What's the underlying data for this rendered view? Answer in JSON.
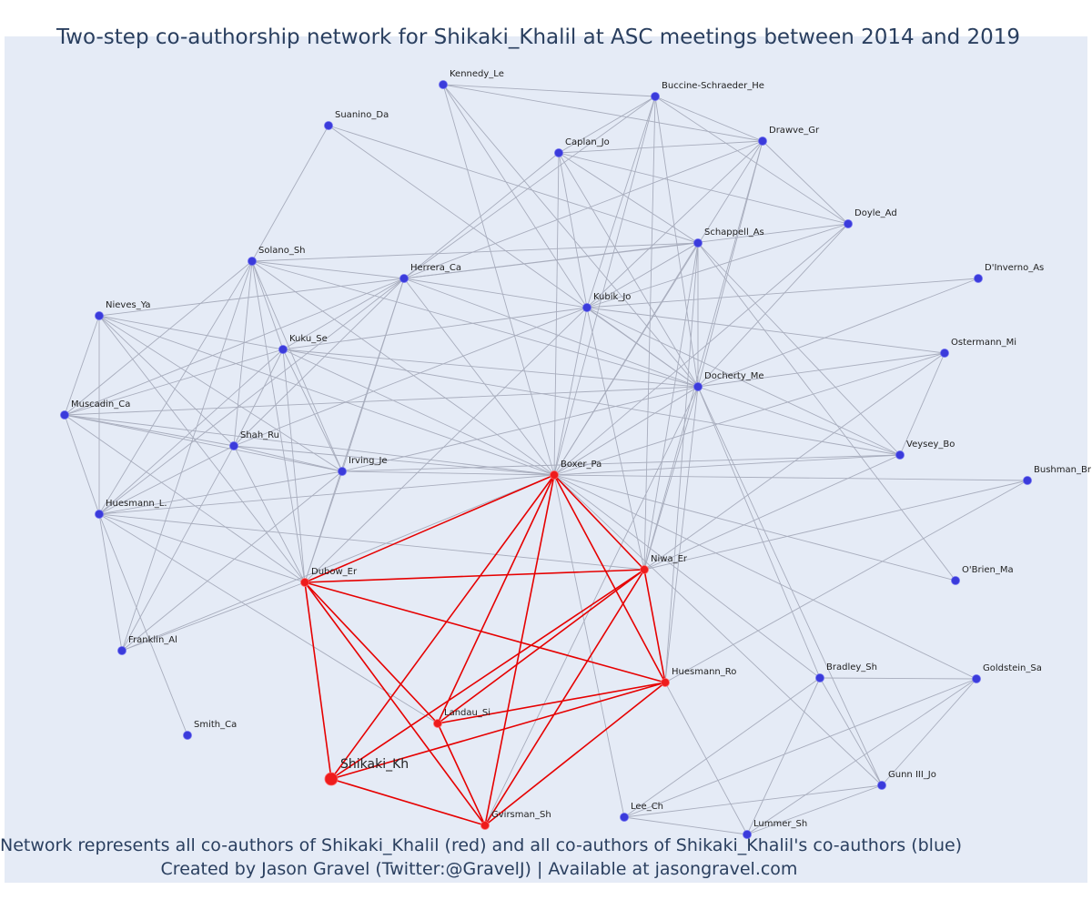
{
  "title": "Two-step co-authorship network for Shikaki_Khalil at ASC meetings between 2014 and 2019",
  "captions": {
    "line1": "Network represents all co-authors of Shikaki_Khalil (red) and all co-authors of Shikaki_Khalil's co-authors (blue)",
    "line2": "Created by Jason Gravel (Twitter:@GravelJ) | Available at jasongravel.com"
  },
  "colors": {
    "background": "#e5ebf6",
    "coauthor_node": "#3b3bdb",
    "secondary_node": "#3b3bdb",
    "direct_node": "#ee1c1c",
    "direct_edge": "#e60000",
    "secondary_edge": "#a8adbd",
    "text": "#2a3f5f"
  },
  "nodes": [
    {
      "id": "Kennedy_Le",
      "label": "Kennedy_Le",
      "group": "secondary"
    },
    {
      "id": "Buccine-Schraeder_He",
      "label": "Buccine-Schraeder_He",
      "group": "secondary"
    },
    {
      "id": "Suanino_Da",
      "label": "Suanino_Da",
      "group": "secondary"
    },
    {
      "id": "Caplan_Jo",
      "label": "Caplan_Jo",
      "group": "secondary"
    },
    {
      "id": "Drawve_Gr",
      "label": "Drawve_Gr",
      "group": "secondary"
    },
    {
      "id": "Doyle_Ad",
      "label": "Doyle_Ad",
      "group": "secondary"
    },
    {
      "id": "Schappell_As",
      "label": "Schappell_As",
      "group": "secondary"
    },
    {
      "id": "Solano_Sh",
      "label": "Solano_Sh",
      "group": "secondary"
    },
    {
      "id": "Herrera_Ca",
      "label": "Herrera_Ca",
      "group": "secondary"
    },
    {
      "id": "D'Inverno_As",
      "label": "D'Inverno_As",
      "group": "secondary"
    },
    {
      "id": "Kubik_Jo",
      "label": "Kubik_Jo",
      "group": "secondary"
    },
    {
      "id": "Nieves_Ya",
      "label": "Nieves_Ya",
      "group": "secondary"
    },
    {
      "id": "Kuku_Se",
      "label": "Kuku_Se",
      "group": "secondary"
    },
    {
      "id": "Ostermann_Mi",
      "label": "Ostermann_Mi",
      "group": "secondary"
    },
    {
      "id": "Docherty_Me",
      "label": "Docherty_Me",
      "group": "secondary"
    },
    {
      "id": "Muscadin_Ca",
      "label": "Muscadin_Ca",
      "group": "secondary"
    },
    {
      "id": "Shah_Ru",
      "label": "Shah_Ru",
      "group": "secondary"
    },
    {
      "id": "Irving_Je",
      "label": "Irving_Je",
      "group": "secondary"
    },
    {
      "id": "Veysey_Bo",
      "label": "Veysey_Bo",
      "group": "secondary"
    },
    {
      "id": "Bushman_Br",
      "label": "Bushman_Br",
      "group": "secondary"
    },
    {
      "id": "Huesmann_L.",
      "label": "Huesmann_L.",
      "group": "secondary"
    },
    {
      "id": "O'Brien_Ma",
      "label": "O'Brien_Ma",
      "group": "secondary"
    },
    {
      "id": "Franklin_Al",
      "label": "Franklin_Al",
      "group": "secondary"
    },
    {
      "id": "Bradley_Sh",
      "label": "Bradley_Sh",
      "group": "secondary"
    },
    {
      "id": "Goldstein_Sa",
      "label": "Goldstein_Sa",
      "group": "secondary"
    },
    {
      "id": "Smith_Ca",
      "label": "Smith_Ca",
      "group": "secondary"
    },
    {
      "id": "Gunn III_Jo",
      "label": "Gunn III_Jo",
      "group": "secondary"
    },
    {
      "id": "Lee_Ch",
      "label": "Lee_Ch",
      "group": "secondary"
    },
    {
      "id": "Lummer_Sh",
      "label": "Lummer_Sh",
      "group": "secondary"
    },
    {
      "id": "Boxer_Pa",
      "label": "Boxer_Pa",
      "group": "direct"
    },
    {
      "id": "Niwa_Er",
      "label": "Niwa_Er",
      "group": "direct"
    },
    {
      "id": "Dubow_Er",
      "label": "Dubow_Er",
      "group": "direct"
    },
    {
      "id": "Huesmann_Ro",
      "label": "Huesmann_Ro",
      "group": "direct"
    },
    {
      "id": "Landau_Si",
      "label": "Landau_Si",
      "group": "direct"
    },
    {
      "id": "Gvirsman_Sh",
      "label": "Gvirsman_Sh",
      "group": "direct"
    },
    {
      "id": "Shikaki_Kh",
      "label": "Shikaki_Kh",
      "group": "main"
    }
  ],
  "direct_edges": [
    [
      "Shikaki_Kh",
      "Dubow_Er"
    ],
    [
      "Shikaki_Kh",
      "Boxer_Pa"
    ],
    [
      "Shikaki_Kh",
      "Niwa_Er"
    ],
    [
      "Shikaki_Kh",
      "Huesmann_Ro"
    ],
    [
      "Shikaki_Kh",
      "Gvirsman_Sh"
    ],
    [
      "Dubow_Er",
      "Boxer_Pa"
    ],
    [
      "Dubow_Er",
      "Niwa_Er"
    ],
    [
      "Dubow_Er",
      "Huesmann_Ro"
    ],
    [
      "Dubow_Er",
      "Landau_Si"
    ],
    [
      "Dubow_Er",
      "Gvirsman_Sh"
    ],
    [
      "Boxer_Pa",
      "Niwa_Er"
    ],
    [
      "Boxer_Pa",
      "Huesmann_Ro"
    ],
    [
      "Boxer_Pa",
      "Landau_Si"
    ],
    [
      "Boxer_Pa",
      "Gvirsman_Sh"
    ],
    [
      "Niwa_Er",
      "Huesmann_Ro"
    ],
    [
      "Niwa_Er",
      "Landau_Si"
    ],
    [
      "Niwa_Er",
      "Gvirsman_Sh"
    ],
    [
      "Huesmann_Ro",
      "Landau_Si"
    ],
    [
      "Huesmann_Ro",
      "Gvirsman_Sh"
    ],
    [
      "Landau_Si",
      "Gvirsman_Sh"
    ]
  ],
  "secondary_edges": [
    [
      "Boxer_Pa",
      "Kennedy_Le"
    ],
    [
      "Boxer_Pa",
      "Buccine-Schraeder_He"
    ],
    [
      "Boxer_Pa",
      "Caplan_Jo"
    ],
    [
      "Boxer_Pa",
      "Drawve_Gr"
    ],
    [
      "Boxer_Pa",
      "Doyle_Ad"
    ],
    [
      "Boxer_Pa",
      "Schappell_As"
    ],
    [
      "Boxer_Pa",
      "Herrera_Ca"
    ],
    [
      "Boxer_Pa",
      "Kubik_Jo"
    ],
    [
      "Boxer_Pa",
      "Docherty_Me"
    ],
    [
      "Boxer_Pa",
      "Solano_Sh"
    ],
    [
      "Boxer_Pa",
      "Nieves_Ya"
    ],
    [
      "Boxer_Pa",
      "Kuku_Se"
    ],
    [
      "Boxer_Pa",
      "Muscadin_Ca"
    ],
    [
      "Boxer_Pa",
      "Shah_Ru"
    ],
    [
      "Boxer_Pa",
      "Irving_Je"
    ],
    [
      "Boxer_Pa",
      "Huesmann_L."
    ],
    [
      "Boxer_Pa",
      "Veysey_Bo"
    ],
    [
      "Boxer_Pa",
      "Bushman_Br"
    ],
    [
      "Boxer_Pa",
      "O'Brien_Ma"
    ],
    [
      "Boxer_Pa",
      "Bradley_Sh"
    ],
    [
      "Boxer_Pa",
      "Goldstein_Sa"
    ],
    [
      "Boxer_Pa",
      "Lee_Ch"
    ],
    [
      "Boxer_Pa",
      "Gunn III_Jo"
    ],
    [
      "Boxer_Pa",
      "Ostermann_Mi"
    ],
    [
      "Boxer_Pa",
      "Franklin_Al"
    ],
    [
      "Dubow_Er",
      "Solano_Sh"
    ],
    [
      "Dubow_Er",
      "Kuku_Se"
    ],
    [
      "Dubow_Er",
      "Shah_Ru"
    ],
    [
      "Dubow_Er",
      "Herrera_Ca"
    ],
    [
      "Dubow_Er",
      "Irving_Je"
    ],
    [
      "Dubow_Er",
      "Nieves_Ya"
    ],
    [
      "Dubow_Er",
      "Muscadin_Ca"
    ],
    [
      "Dubow_Er",
      "Huesmann_L."
    ],
    [
      "Dubow_Er",
      "Franklin_Al"
    ],
    [
      "Dubow_Er",
      "Kubik_Jo"
    ],
    [
      "Niwa_Er",
      "Buccine-Schraeder_He"
    ],
    [
      "Niwa_Er",
      "Drawve_Gr"
    ],
    [
      "Niwa_Er",
      "Kubik_Jo"
    ],
    [
      "Niwa_Er",
      "Schappell_As"
    ],
    [
      "Niwa_Er",
      "Docherty_Me"
    ],
    [
      "Niwa_Er",
      "Veysey_Bo"
    ],
    [
      "Niwa_Er",
      "Ostermann_Mi"
    ],
    [
      "Niwa_Er",
      "Bushman_Br"
    ],
    [
      "Niwa_Er",
      "Huesmann_L."
    ],
    [
      "Huesmann_Ro",
      "Lummer_Sh"
    ],
    [
      "Huesmann_Ro",
      "Docherty_Me"
    ],
    [
      "Huesmann_Ro",
      "Schappell_As"
    ],
    [
      "Landau_Si",
      "Huesmann_L."
    ],
    [
      "Gvirsman_Sh",
      "Docherty_Me"
    ],
    [
      "Kennedy_Le",
      "Buccine-Schraeder_He"
    ],
    [
      "Kennedy_Le",
      "Drawve_Gr"
    ],
    [
      "Kennedy_Le",
      "Kubik_Jo"
    ],
    [
      "Kennedy_Le",
      "Docherty_Me"
    ],
    [
      "Buccine-Schraeder_He",
      "Drawve_Gr"
    ],
    [
      "Buccine-Schraeder_He",
      "Doyle_Ad"
    ],
    [
      "Buccine-Schraeder_He",
      "Caplan_Jo"
    ],
    [
      "Buccine-Schraeder_He",
      "Kubik_Jo"
    ],
    [
      "Buccine-Schraeder_He",
      "Herrera_Ca"
    ],
    [
      "Buccine-Schraeder_He",
      "Docherty_Me"
    ],
    [
      "Caplan_Jo",
      "Drawve_Gr"
    ],
    [
      "Caplan_Jo",
      "Doyle_Ad"
    ],
    [
      "Caplan_Jo",
      "Herrera_Ca"
    ],
    [
      "Caplan_Jo",
      "Kubik_Jo"
    ],
    [
      "Caplan_Jo",
      "Docherty_Me"
    ],
    [
      "Caplan_Jo",
      "Schappell_As"
    ],
    [
      "Drawve_Gr",
      "Doyle_Ad"
    ],
    [
      "Drawve_Gr",
      "Kubik_Jo"
    ],
    [
      "Drawve_Gr",
      "Herrera_Ca"
    ],
    [
      "Drawve_Gr",
      "Docherty_Me"
    ],
    [
      "Doyle_Ad",
      "Kubik_Jo"
    ],
    [
      "Doyle_Ad",
      "Herrera_Ca"
    ],
    [
      "Doyle_Ad",
      "Docherty_Me"
    ],
    [
      "Suanino_Da",
      "Schappell_As"
    ],
    [
      "Suanino_Da",
      "Solano_Sh"
    ],
    [
      "Suanino_Da",
      "Docherty_Me"
    ],
    [
      "Schappell_As",
      "Herrera_Ca"
    ],
    [
      "Schappell_As",
      "Solano_Sh"
    ],
    [
      "Schappell_As",
      "Docherty_Me"
    ],
    [
      "Schappell_As",
      "Veysey_Bo"
    ],
    [
      "Schappell_As",
      "O'Brien_Ma"
    ],
    [
      "Schappell_As",
      "Kubik_Jo"
    ],
    [
      "Solano_Sh",
      "Herrera_Ca"
    ],
    [
      "Solano_Sh",
      "Kuku_Se"
    ],
    [
      "Solano_Sh",
      "Shah_Ru"
    ],
    [
      "Solano_Sh",
      "Irving_Je"
    ],
    [
      "Solano_Sh",
      "Muscadin_Ca"
    ],
    [
      "Solano_Sh",
      "Huesmann_L."
    ],
    [
      "Solano_Sh",
      "Docherty_Me"
    ],
    [
      "Solano_Sh",
      "Franklin_Al"
    ],
    [
      "Herrera_Ca",
      "Kubik_Jo"
    ],
    [
      "Herrera_Ca",
      "Docherty_Me"
    ],
    [
      "Herrera_Ca",
      "Kuku_Se"
    ],
    [
      "Herrera_Ca",
      "Shah_Ru"
    ],
    [
      "Herrera_Ca",
      "Irving_Je"
    ],
    [
      "Herrera_Ca",
      "Nieves_Ya"
    ],
    [
      "Herrera_Ca",
      "Muscadin_Ca"
    ],
    [
      "Herrera_Ca",
      "Huesmann_L."
    ],
    [
      "Kubik_Jo",
      "Docherty_Me"
    ],
    [
      "Kubik_Jo",
      "D'Inverno_As"
    ],
    [
      "Kubik_Jo",
      "Ostermann_Mi"
    ],
    [
      "Kubik_Jo",
      "Veysey_Bo"
    ],
    [
      "Kubik_Jo",
      "Shah_Ru"
    ],
    [
      "Kubik_Jo",
      "Kuku_Se"
    ],
    [
      "Docherty_Me",
      "D'Inverno_As"
    ],
    [
      "Docherty_Me",
      "Ostermann_Mi"
    ],
    [
      "Docherty_Me",
      "Veysey_Bo"
    ],
    [
      "Docherty_Me",
      "Kuku_Se"
    ],
    [
      "Docherty_Me",
      "Muscadin_Ca"
    ],
    [
      "Docherty_Me",
      "Irving_Je"
    ],
    [
      "Docherty_Me",
      "Bradley_Sh"
    ],
    [
      "Docherty_Me",
      "Gunn III_Jo"
    ],
    [
      "Nieves_Ya",
      "Kuku_Se"
    ],
    [
      "Nieves_Ya",
      "Shah_Ru"
    ],
    [
      "Nieves_Ya",
      "Irving_Je"
    ],
    [
      "Nieves_Ya",
      "Muscadin_Ca"
    ],
    [
      "Nieves_Ya",
      "Huesmann_L."
    ],
    [
      "Kuku_Se",
      "Shah_Ru"
    ],
    [
      "Kuku_Se",
      "Irving_Je"
    ],
    [
      "Kuku_Se",
      "Muscadin_Ca"
    ],
    [
      "Kuku_Se",
      "Huesmann_L."
    ],
    [
      "Kuku_Se",
      "Veysey_Bo"
    ],
    [
      "Muscadin_Ca",
      "Shah_Ru"
    ],
    [
      "Muscadin_Ca",
      "Irving_Je"
    ],
    [
      "Muscadin_Ca",
      "Huesmann_L."
    ],
    [
      "Shah_Ru",
      "Irving_Je"
    ],
    [
      "Shah_Ru",
      "Huesmann_L."
    ],
    [
      "Shah_Ru",
      "Franklin_Al"
    ],
    [
      "Irving_Je",
      "Huesmann_L."
    ],
    [
      "Irving_Je",
      "Veysey_Bo"
    ],
    [
      "Irving_Je",
      "Franklin_Al"
    ],
    [
      "Huesmann_L.",
      "Franklin_Al"
    ],
    [
      "Huesmann_L.",
      "Smith_Ca"
    ],
    [
      "Ostermann_Mi",
      "Veysey_Bo"
    ],
    [
      "Bushman_Br",
      "Huesmann_Ro"
    ],
    [
      "Bradley_Sh",
      "Gunn III_Jo"
    ],
    [
      "Bradley_Sh",
      "Lee_Ch"
    ],
    [
      "Bradley_Sh",
      "Lummer_Sh"
    ],
    [
      "Bradley_Sh",
      "Goldstein_Sa"
    ],
    [
      "Goldstein_Sa",
      "Lee_Ch"
    ],
    [
      "Goldstein_Sa",
      "Lummer_Sh"
    ],
    [
      "Goldstein_Sa",
      "Gunn III_Jo"
    ],
    [
      "Gunn III_Jo",
      "Lee_Ch"
    ],
    [
      "Gunn III_Jo",
      "Lummer_Sh"
    ],
    [
      "Lee_Ch",
      "Lummer_Sh"
    ]
  ]
}
